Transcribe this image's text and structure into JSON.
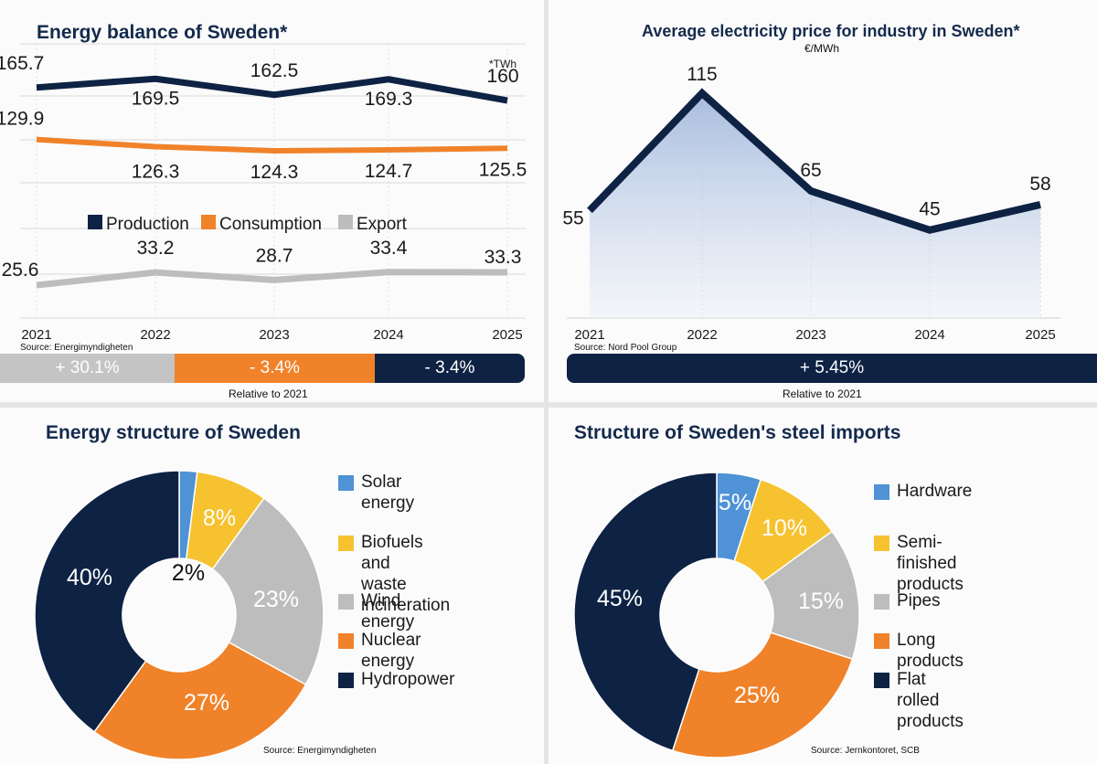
{
  "colors": {
    "navy": "#0e2244",
    "orange": "#f0822a",
    "gray": "#bdbdbd",
    "blue": "#4f92d6",
    "yellow": "#f6c22f"
  },
  "balance": {
    "title": "Energy balance of Sweden*",
    "unit_note": "*TWh",
    "source": "Source: Energimyndigheten",
    "relative_note": "Relative to 2021",
    "summary": [
      "+ 30.1%",
      "- 3.4%",
      "- 3.4%"
    ],
    "chart_data": {
      "type": "line",
      "x": [
        "2021",
        "2022",
        "2023",
        "2024",
        "2025"
      ],
      "series": [
        {
          "name": "Production",
          "values": [
            165.7,
            169.5,
            162.5,
            169.3,
            160
          ]
        },
        {
          "name": "Consumption",
          "values": [
            129.9,
            126.3,
            124.3,
            124.7,
            125.5
          ]
        },
        {
          "name": "Export",
          "values": [
            25.6,
            33.2,
            28.7,
            33.4,
            33.3
          ]
        }
      ],
      "legend": "center"
    }
  },
  "price": {
    "title": "Average electricity price for industry in Sweden*",
    "subtitle": "€/MWh",
    "source": "Source: Nord Pool Group",
    "relative_note": "Relative to 2021",
    "summary": "+ 5.45%",
    "chart_data": {
      "type": "area",
      "x": [
        "2021",
        "2022",
        "2023",
        "2024",
        "2025"
      ],
      "values": [
        55,
        115,
        65,
        45,
        58
      ]
    }
  },
  "structure": {
    "title": "Energy structure of Sweden",
    "source": "Source: Energimyndigheten",
    "chart_data": {
      "type": "pie",
      "slices": [
        {
          "label": "Solar\nenergy",
          "value": 2,
          "text": "2%",
          "color": "#4f92d6"
        },
        {
          "label": "Biofuels and\nwaste incineration",
          "value": 8,
          "text": "8%",
          "color": "#f6c22f"
        },
        {
          "label": "Wind energy",
          "value": 23,
          "text": "23%",
          "color": "#bdbdbd"
        },
        {
          "label": "Nuclear energy",
          "value": 27,
          "text": "27%",
          "color": "#f0822a"
        },
        {
          "label": "Hydropower",
          "value": 40,
          "text": "40%",
          "color": "#0e2244"
        }
      ]
    }
  },
  "steel": {
    "title": "Structure of Sweden's steel imports",
    "source": "Source: Jernkontoret, SCB",
    "chart_data": {
      "type": "pie",
      "slices": [
        {
          "label": "Hardware",
          "value": 5,
          "text": "5%",
          "color": "#4f92d6"
        },
        {
          "label": "Semi-finished\nproducts",
          "value": 10,
          "text": "10%",
          "color": "#f6c22f"
        },
        {
          "label": "Pipes",
          "value": 15,
          "text": "15%",
          "color": "#bdbdbd"
        },
        {
          "label": "Long products",
          "value": 25,
          "text": "25%",
          "color": "#f0822a"
        },
        {
          "label": "Flat rolled products",
          "value": 45,
          "text": "45%",
          "color": "#0e2244"
        }
      ]
    }
  }
}
